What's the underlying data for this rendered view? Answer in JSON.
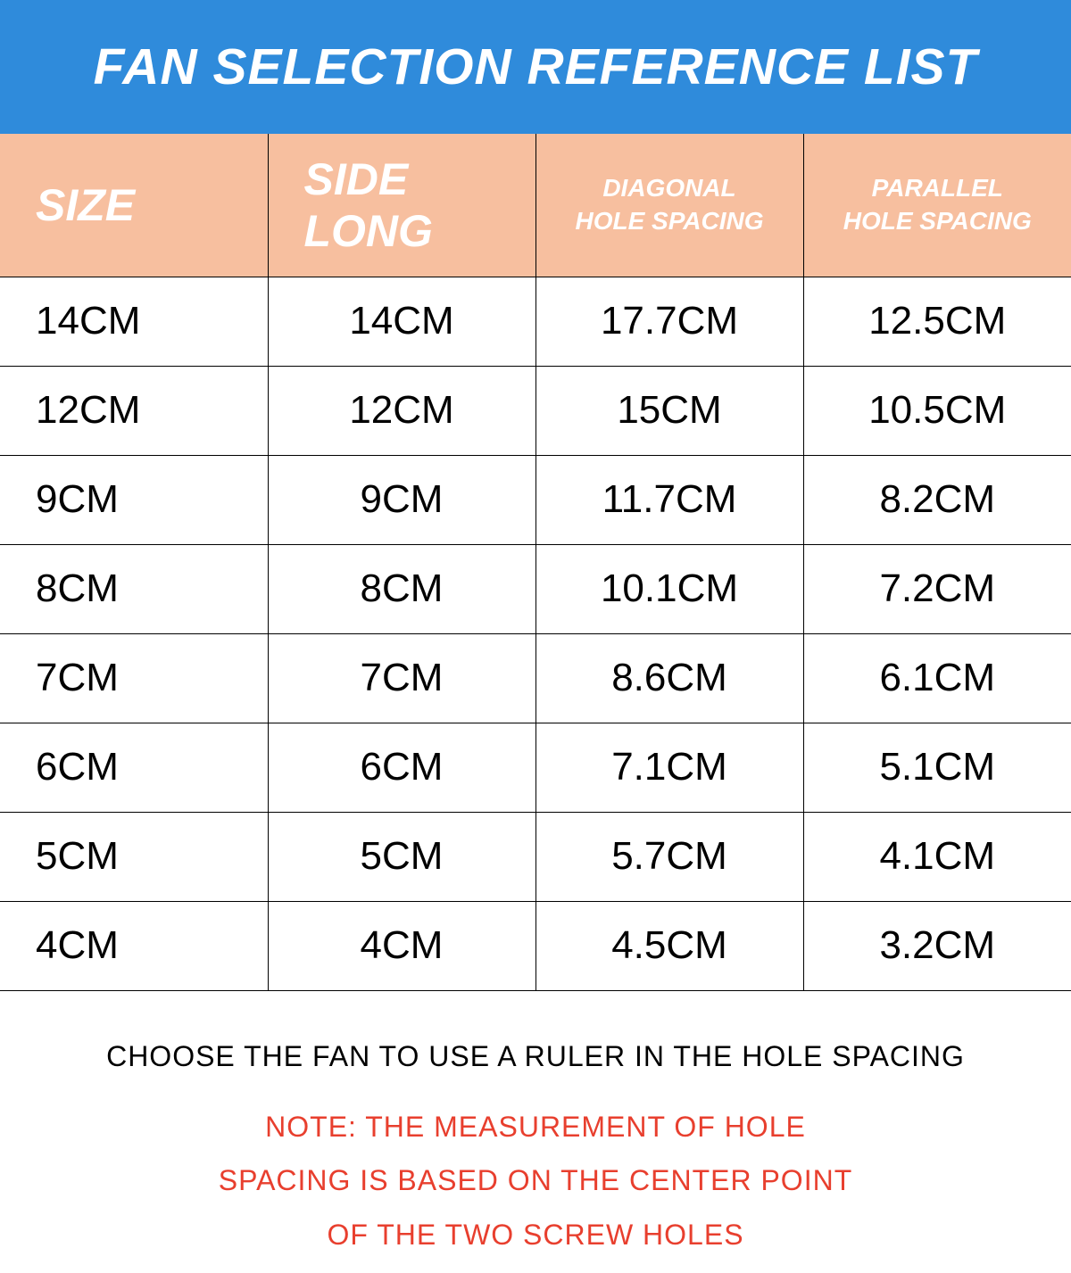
{
  "colors": {
    "title_bg": "#2f8bdb",
    "title_fg": "#ffffff",
    "header_bg": "#f7bf9f",
    "header_fg": "#ffffff",
    "cell_fg": "#000000",
    "border": "#000000",
    "note_fg": "#e83f2e",
    "page_bg": "#ffffff"
  },
  "title": "FAN SELECTION REFERENCE LIST",
  "table": {
    "columns": [
      {
        "label": "SIZE",
        "style": "big"
      },
      {
        "label": "SIDE LONG",
        "style": "big"
      },
      {
        "label_line1": "DIAGONAL",
        "label_line2": "HOLE SPACING",
        "style": "small"
      },
      {
        "label_line1": "PARALLEL",
        "label_line2": "HOLE SPACING",
        "style": "small"
      }
    ],
    "rows": [
      [
        "14CM",
        "14CM",
        "17.7CM",
        "12.5CM"
      ],
      [
        "12CM",
        "12CM",
        "15CM",
        "10.5CM"
      ],
      [
        "9CM",
        "9CM",
        "11.7CM",
        "8.2CM"
      ],
      [
        "8CM",
        "8CM",
        "10.1CM",
        "7.2CM"
      ],
      [
        "7CM",
        "7CM",
        "8.6CM",
        "6.1CM"
      ],
      [
        "6CM",
        "6CM",
        "7.1CM",
        "5.1CM"
      ],
      [
        "5CM",
        "5CM",
        "5.7CM",
        "4.1CM"
      ],
      [
        "4CM",
        "4CM",
        "4.5CM",
        "3.2CM"
      ]
    ]
  },
  "footer": {
    "line1": "CHOOSE THE FAN TO USE A RULER IN THE HOLE SPACING",
    "note_l1": "NOTE: THE MEASUREMENT OF HOLE",
    "note_l2": "SPACING IS BASED ON THE CENTER POINT",
    "note_l3": "OF THE TWO SCREW HOLES"
  }
}
